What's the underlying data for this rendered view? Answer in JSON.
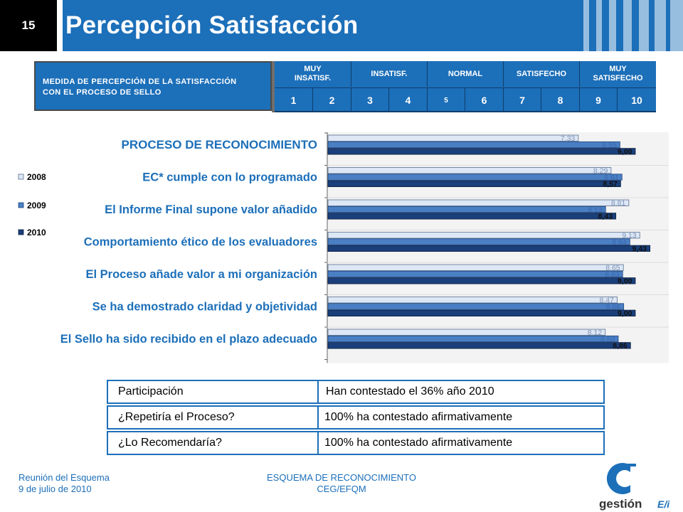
{
  "header": {
    "slide_number": "15",
    "title": "Percepción Satisfacción"
  },
  "scale": {
    "label_line1": "MEDIDA DE PERCEPCIÓN DE LA SATISFACCIÓN",
    "label_line2": "CON EL PROCESO DE SELLO",
    "categories": [
      {
        "line1": "MUY",
        "line2": "INSATISF."
      },
      {
        "line1": "INSATISF.",
        "line2": ""
      },
      {
        "line1": "NORMAL",
        "line2": ""
      },
      {
        "line1": "SATISFECHO",
        "line2": ""
      },
      {
        "line1": "MUY",
        "line2": "SATISFECHO"
      }
    ],
    "digits": [
      "1",
      "2",
      "3",
      "4",
      "5",
      "6",
      "7",
      "8",
      "9",
      "10"
    ]
  },
  "chart_data": {
    "type": "bar",
    "orientation": "horizontal",
    "categories": [
      "PROCESO DE RECONOCIMIENTO",
      "EC* cumple con lo programado",
      "El Informe Final supone valor añadido",
      "Comportamiento ético de los evaluadores",
      "El Proceso añade valor a mi organización",
      "Se ha demostrado claridad y objetividad",
      "El Sello ha sido recibido en el plazo adecuado"
    ],
    "series": [
      {
        "name": "2008",
        "values": [
          7.33,
          8.29,
          8.81,
          9.13,
          8.65,
          8.47,
          8.12
        ],
        "labels": [
          "7,33",
          "8,29",
          "8,81",
          "9,13",
          "8,65",
          "8,47",
          "8,12"
        ]
      },
      {
        "name": "2009",
        "values": [
          8.55,
          8.61,
          8.13,
          8.84,
          8.63,
          8.66,
          8.5
        ],
        "labels": [
          "8,55",
          "8,61",
          "8,13",
          "8,84",
          "8,63",
          "8,66",
          "8,50"
        ]
      },
      {
        "name": "2010",
        "values": [
          9.0,
          8.57,
          8.43,
          9.43,
          9.0,
          9.0,
          8.86
        ],
        "labels": [
          "9,00",
          "8,57",
          "8,43",
          "9,43",
          "9,00",
          "9,00",
          "8,86"
        ]
      }
    ],
    "xlim": [
      0,
      10
    ],
    "legend_position": "left",
    "colors": {
      "2008": "#dde7f5",
      "2009": "#4a7fc4",
      "2010": "#1a3f7a",
      "category_text": "#1c6fb9"
    }
  },
  "summary": [
    {
      "left": " Participación",
      "right": "Han contestado el 36% año 2010"
    },
    {
      "left": "¿Repetiría el Proceso?",
      "right": "100% ha contestado afirmativamente"
    },
    {
      "left": "¿Lo Recomendaría?",
      "right": "100% ha contestado afirmativamente"
    }
  ],
  "footer": {
    "left_line1": "Reunión del Esquema",
    "left_line2": "9 de julio de 2010",
    "center_line1": "ESQUEMA DE RECONOCIMIENTO",
    "center_line2": "CEG/EFQM",
    "logo_text": "gestión",
    "logo_suffix": "E/i"
  }
}
